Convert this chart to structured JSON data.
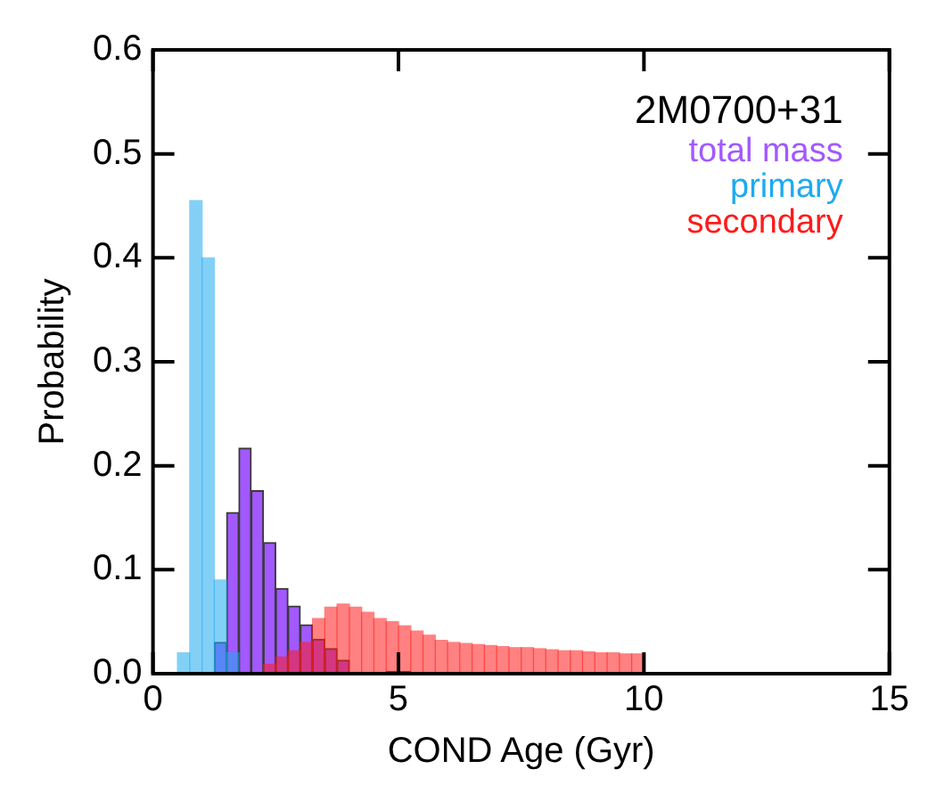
{
  "chart_data": {
    "type": "histogram",
    "xlabel": "COND Age (Gyr)",
    "ylabel": "Probability",
    "legend_title": "2M0700+31",
    "bins": [
      0.5,
      0.75,
      1.0,
      1.25,
      1.5,
      1.75,
      2.0,
      2.25,
      2.5,
      2.75,
      3.0,
      3.25,
      3.5,
      3.75,
      4.0,
      4.25,
      4.5,
      4.75,
      5.0,
      5.25,
      5.5,
      5.75,
      6.0,
      6.25,
      6.5,
      6.75,
      7.0,
      7.25,
      7.5,
      7.75,
      8.0,
      8.25,
      8.5,
      8.75,
      9.0,
      9.25,
      9.5,
      9.75,
      10.0
    ],
    "series": [
      {
        "name": "total mass",
        "color": "#a259ff",
        "values": [
          null,
          null,
          null,
          0.03,
          0.155,
          0.217,
          0.176,
          0.126,
          0.082,
          0.065,
          0.047,
          0.033,
          0.024,
          0.013,
          null,
          null,
          null,
          0.002,
          0.002,
          null,
          null,
          null,
          null,
          null,
          null,
          null,
          null,
          null,
          null,
          null,
          null,
          null,
          null,
          null,
          null,
          null,
          null,
          null
        ]
      },
      {
        "name": "primary",
        "color": "#1eaaf1",
        "values": [
          0.02,
          0.455,
          0.4,
          0.09,
          0.02,
          null,
          null,
          null,
          null,
          null,
          null,
          null,
          null,
          null,
          null,
          null,
          null,
          null,
          null,
          null,
          null,
          null,
          null,
          null,
          null,
          null,
          null,
          null,
          null,
          null,
          null,
          null,
          null,
          null,
          null,
          null,
          null,
          null
        ]
      },
      {
        "name": "secondary",
        "color": "#ff1a1a",
        "values": [
          null,
          null,
          null,
          null,
          null,
          null,
          null,
          0.009,
          0.016,
          0.022,
          0.03,
          0.053,
          0.064,
          0.067,
          0.064,
          0.059,
          0.053,
          0.05,
          0.046,
          0.041,
          0.037,
          0.032,
          0.03,
          0.029,
          0.028,
          0.027,
          0.026,
          0.025,
          0.025,
          0.024,
          0.023,
          0.022,
          0.022,
          0.021,
          0.02,
          0.02,
          0.019,
          0.019
        ]
      }
    ],
    "xlim": [
      0,
      15
    ],
    "xticks": [
      0,
      5,
      10,
      15
    ],
    "ylim": [
      0,
      0.6
    ],
    "yticks": [
      {
        "value": 0,
        "label": "0.0"
      },
      {
        "value": 0.1,
        "label": "0.1"
      },
      {
        "value": 0.2,
        "label": "0.2"
      },
      {
        "value": 0.3,
        "label": "0.3"
      },
      {
        "value": 0.4,
        "label": "0.4"
      },
      {
        "value": 0.5,
        "label": "0.5"
      },
      {
        "value": 0.6,
        "label": "0.6"
      }
    ],
    "legend": "top right"
  }
}
